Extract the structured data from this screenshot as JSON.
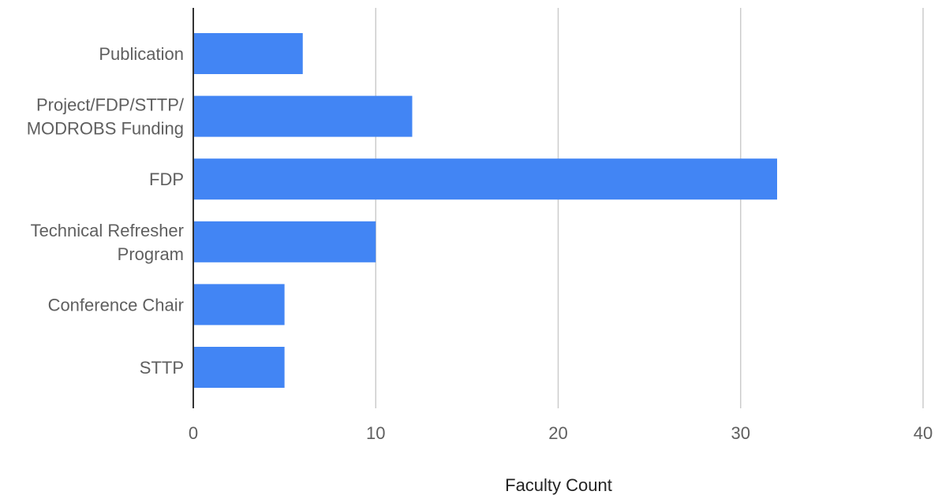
{
  "chart_data": {
    "type": "bar",
    "orientation": "horizontal",
    "categories": [
      [
        "Publication"
      ],
      [
        "Project/FDP/STTP/",
        "MODROBS Funding"
      ],
      [
        "FDP"
      ],
      [
        "Technical Refresher",
        "Program"
      ],
      [
        "Conference Chair"
      ],
      [
        "STTP"
      ]
    ],
    "values": [
      6,
      12,
      32,
      10,
      5,
      5
    ],
    "xlabel": "Faculty Count",
    "ylabel": "",
    "title": "",
    "xlim": [
      0,
      40
    ],
    "xticks": [
      0,
      10,
      20,
      30,
      40
    ],
    "grid": true,
    "legend": "none",
    "colors": {
      "bar": "#4285f4",
      "grid": "#cccccc",
      "axis": "#333333"
    }
  }
}
